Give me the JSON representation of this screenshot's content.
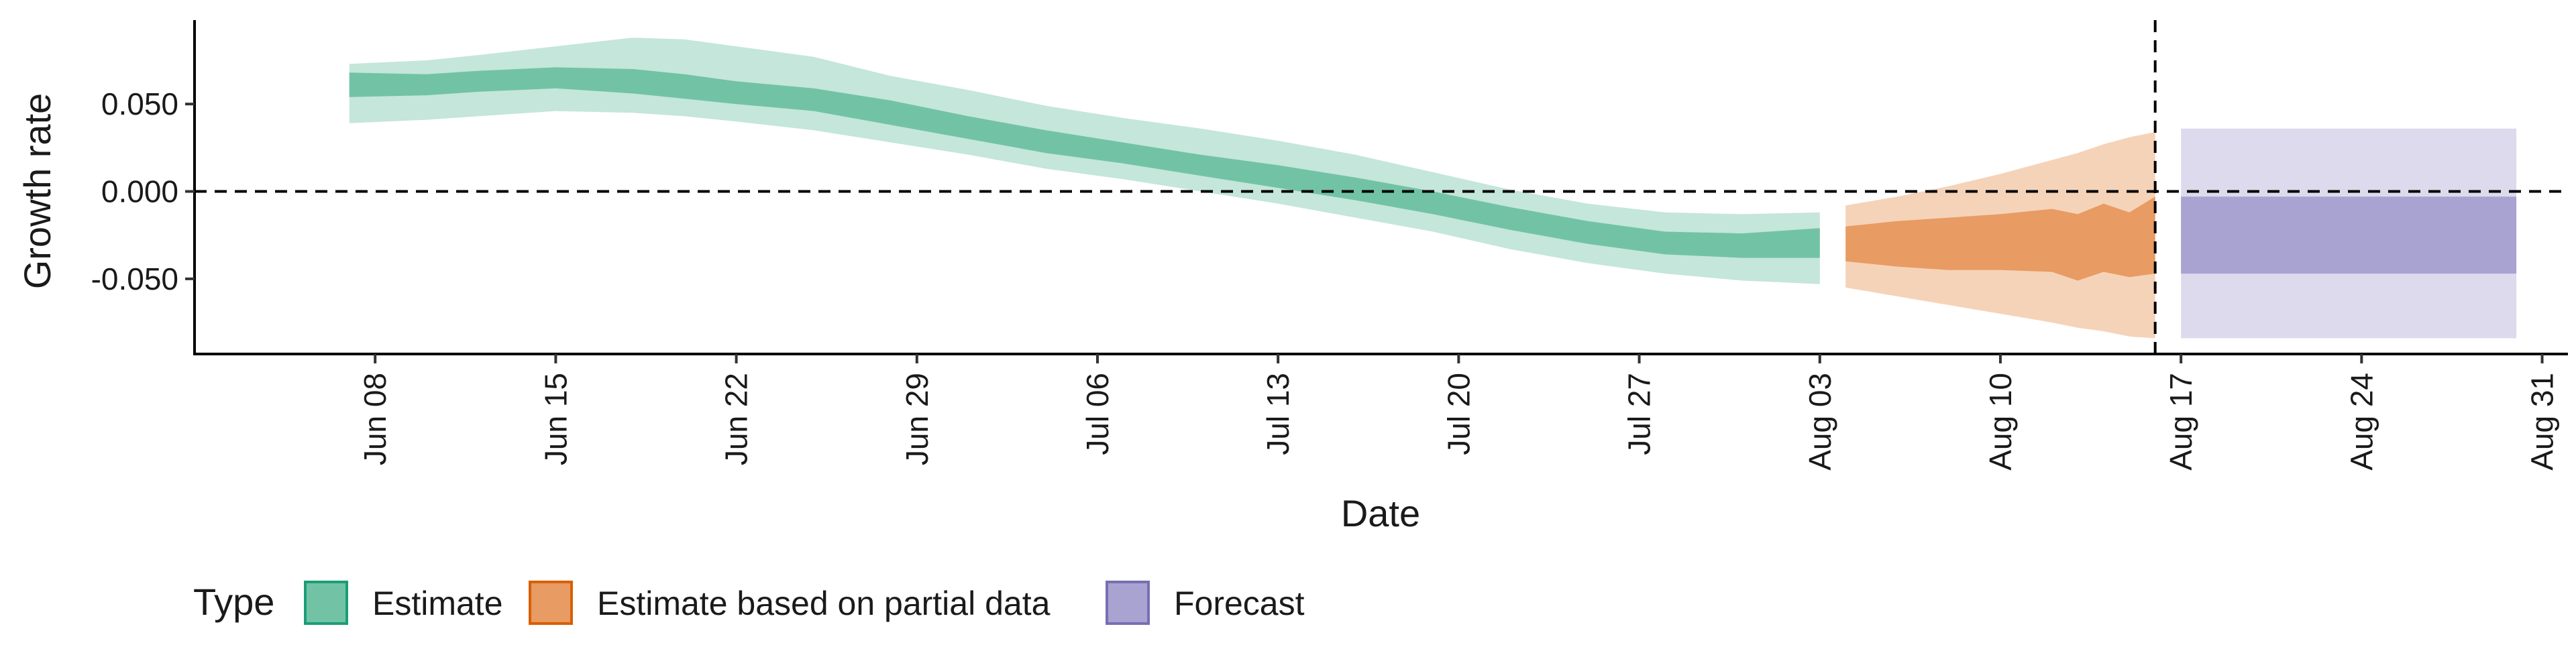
{
  "chart_data": {
    "type": "area",
    "xlabel": "Date",
    "ylabel": "Growth rate",
    "x_range": [
      "2021-06-01",
      "2021-09-01"
    ],
    "ylim": [
      -0.093,
      0.098
    ],
    "x_ticks": [
      {
        "date": "2021-06-08",
        "label": "Jun 08"
      },
      {
        "date": "2021-06-15",
        "label": "Jun 15"
      },
      {
        "date": "2021-06-22",
        "label": "Jun 22"
      },
      {
        "date": "2021-06-29",
        "label": "Jun 29"
      },
      {
        "date": "2021-07-06",
        "label": "Jul 06"
      },
      {
        "date": "2021-07-13",
        "label": "Jul 13"
      },
      {
        "date": "2021-07-20",
        "label": "Jul 20"
      },
      {
        "date": "2021-07-27",
        "label": "Jul 27"
      },
      {
        "date": "2021-08-03",
        "label": "Aug 03"
      },
      {
        "date": "2021-08-10",
        "label": "Aug 10"
      },
      {
        "date": "2021-08-17",
        "label": "Aug 17"
      },
      {
        "date": "2021-08-24",
        "label": "Aug 24"
      },
      {
        "date": "2021-08-31",
        "label": "Aug 31"
      }
    ],
    "y_ticks": [
      {
        "value": 0.05,
        "label": "0.050"
      },
      {
        "value": 0.0,
        "label": "0.000"
      },
      {
        "value": -0.05,
        "label": "-0.050"
      }
    ],
    "reference_lines": {
      "horizontal": 0.0,
      "vertical": "2021-08-16"
    },
    "grid": false,
    "legend": {
      "title": "Type",
      "position": "bottom-left",
      "entries": [
        {
          "label": "Estimate",
          "fill": "#72c3a6",
          "stroke": "#1b9e77"
        },
        {
          "label": "Estimate based on partial data",
          "fill": "#e89b62",
          "stroke": "#d95f02"
        },
        {
          "label": "Forecast",
          "fill": "#a8a3d1",
          "stroke": "#7570b3"
        }
      ]
    },
    "series": [
      {
        "name": "Estimate",
        "color": "#1b9e77",
        "inner_fill": "#72c3a6",
        "outer_fill": "#c5e6da",
        "points": [
          {
            "x": "2021-06-07",
            "outer": [
              0.039,
              0.073
            ],
            "inner": [
              0.054,
              0.068
            ]
          },
          {
            "x": "2021-06-10",
            "outer": [
              0.041,
              0.075
            ],
            "inner": [
              0.055,
              0.067
            ]
          },
          {
            "x": "2021-06-12",
            "outer": [
              0.043,
              0.078
            ],
            "inner": [
              0.057,
              0.069
            ]
          },
          {
            "x": "2021-06-15",
            "outer": [
              0.046,
              0.083
            ],
            "inner": [
              0.059,
              0.071
            ]
          },
          {
            "x": "2021-06-18",
            "outer": [
              0.045,
              0.088
            ],
            "inner": [
              0.056,
              0.07
            ]
          },
          {
            "x": "2021-06-20",
            "outer": [
              0.043,
              0.087
            ],
            "inner": [
              0.053,
              0.067
            ]
          },
          {
            "x": "2021-06-22",
            "outer": [
              0.04,
              0.083
            ],
            "inner": [
              0.05,
              0.063
            ]
          },
          {
            "x": "2021-06-25",
            "outer": [
              0.035,
              0.077
            ],
            "inner": [
              0.046,
              0.059
            ]
          },
          {
            "x": "2021-06-28",
            "outer": [
              0.028,
              0.066
            ],
            "inner": [
              0.038,
              0.052
            ]
          },
          {
            "x": "2021-07-01",
            "outer": [
              0.021,
              0.058
            ],
            "inner": [
              0.03,
              0.043
            ]
          },
          {
            "x": "2021-07-04",
            "outer": [
              0.013,
              0.049
            ],
            "inner": [
              0.022,
              0.035
            ]
          },
          {
            "x": "2021-07-07",
            "outer": [
              0.007,
              0.042
            ],
            "inner": [
              0.016,
              0.028
            ]
          },
          {
            "x": "2021-07-10",
            "outer": [
              0.0,
              0.036
            ],
            "inner": [
              0.009,
              0.021
            ]
          },
          {
            "x": "2021-07-13",
            "outer": [
              -0.007,
              0.029
            ],
            "inner": [
              0.002,
              0.015
            ]
          },
          {
            "x": "2021-07-16",
            "outer": [
              -0.015,
              0.021
            ],
            "inner": [
              -0.005,
              0.008
            ]
          },
          {
            "x": "2021-07-19",
            "outer": [
              -0.023,
              0.011
            ],
            "inner": [
              -0.013,
              0.0
            ]
          },
          {
            "x": "2021-07-22",
            "outer": [
              -0.033,
              0.001
            ],
            "inner": [
              -0.022,
              -0.009
            ]
          },
          {
            "x": "2021-07-25",
            "outer": [
              -0.041,
              -0.007
            ],
            "inner": [
              -0.03,
              -0.017
            ]
          },
          {
            "x": "2021-07-28",
            "outer": [
              -0.047,
              -0.012
            ],
            "inner": [
              -0.036,
              -0.023
            ]
          },
          {
            "x": "2021-07-31",
            "outer": [
              -0.051,
              -0.013
            ],
            "inner": [
              -0.038,
              -0.024
            ]
          },
          {
            "x": "2021-08-03",
            "outer": [
              -0.053,
              -0.012
            ],
            "inner": [
              -0.038,
              -0.021
            ]
          }
        ]
      },
      {
        "name": "Estimate based on partial data",
        "color": "#d95f02",
        "inner_fill": "#e89b62",
        "outer_fill": "#f5d3b9",
        "points": [
          {
            "x": "2021-08-04",
            "outer": [
              -0.055,
              -0.008
            ],
            "inner": [
              -0.04,
              -0.02
            ]
          },
          {
            "x": "2021-08-06",
            "outer": [
              -0.06,
              -0.003
            ],
            "inner": [
              -0.043,
              -0.017
            ]
          },
          {
            "x": "2021-08-08",
            "outer": [
              -0.065,
              0.003
            ],
            "inner": [
              -0.045,
              -0.015
            ]
          },
          {
            "x": "2021-08-10",
            "outer": [
              -0.07,
              0.01
            ],
            "inner": [
              -0.045,
              -0.013
            ]
          },
          {
            "x": "2021-08-12",
            "outer": [
              -0.075,
              0.018
            ],
            "inner": [
              -0.046,
              -0.01
            ]
          },
          {
            "x": "2021-08-13",
            "outer": [
              -0.078,
              0.022
            ],
            "inner": [
              -0.051,
              -0.013
            ]
          },
          {
            "x": "2021-08-14",
            "outer": [
              -0.08,
              0.027
            ],
            "inner": [
              -0.046,
              -0.007
            ]
          },
          {
            "x": "2021-08-15",
            "outer": [
              -0.083,
              0.031
            ],
            "inner": [
              -0.049,
              -0.012
            ]
          },
          {
            "x": "2021-08-16",
            "outer": [
              -0.084,
              0.034
            ],
            "inner": [
              -0.047,
              -0.003
            ]
          }
        ]
      },
      {
        "name": "Forecast",
        "color": "#7570b3",
        "inner_fill": "#a8a3d1",
        "outer_fill": "#dcdaec",
        "points": [
          {
            "x": "2021-08-17",
            "outer": [
              -0.084,
              0.036
            ],
            "inner": [
              -0.047,
              -0.003
            ]
          },
          {
            "x": "2021-08-30",
            "outer": [
              -0.084,
              0.036
            ],
            "inner": [
              -0.047,
              -0.003
            ]
          }
        ]
      }
    ]
  }
}
